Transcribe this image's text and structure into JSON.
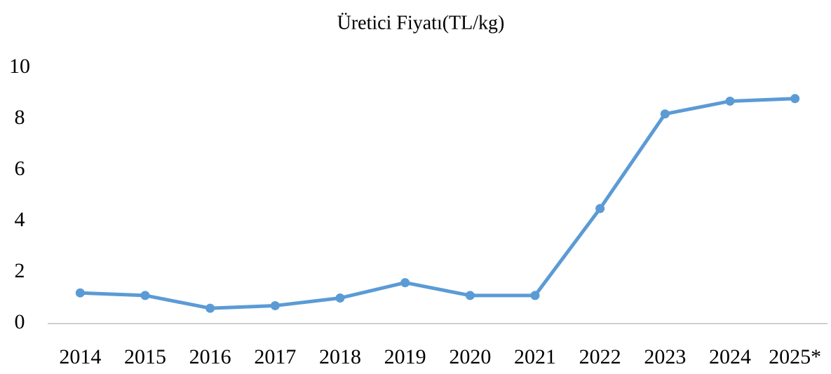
{
  "chart_data": {
    "type": "line",
    "title": "Üretici Fiyatı(TL/kg)",
    "categories": [
      "2014",
      "2015",
      "2016",
      "2017",
      "2018",
      "2019",
      "2020",
      "2021",
      "2022",
      "2023",
      "2024",
      "2025*"
    ],
    "series": [
      {
        "name": "Üretici Fiyatı(TL/kg)",
        "color": "#5b9bd5",
        "values": [
          1.2,
          1.1,
          0.6,
          0.7,
          1.0,
          1.6,
          1.1,
          1.1,
          4.5,
          8.2,
          8.7,
          8.8
        ]
      }
    ],
    "ylim": [
      0,
      10
    ],
    "yticks": [
      0,
      2,
      4,
      6,
      8,
      10
    ],
    "grid": false
  }
}
